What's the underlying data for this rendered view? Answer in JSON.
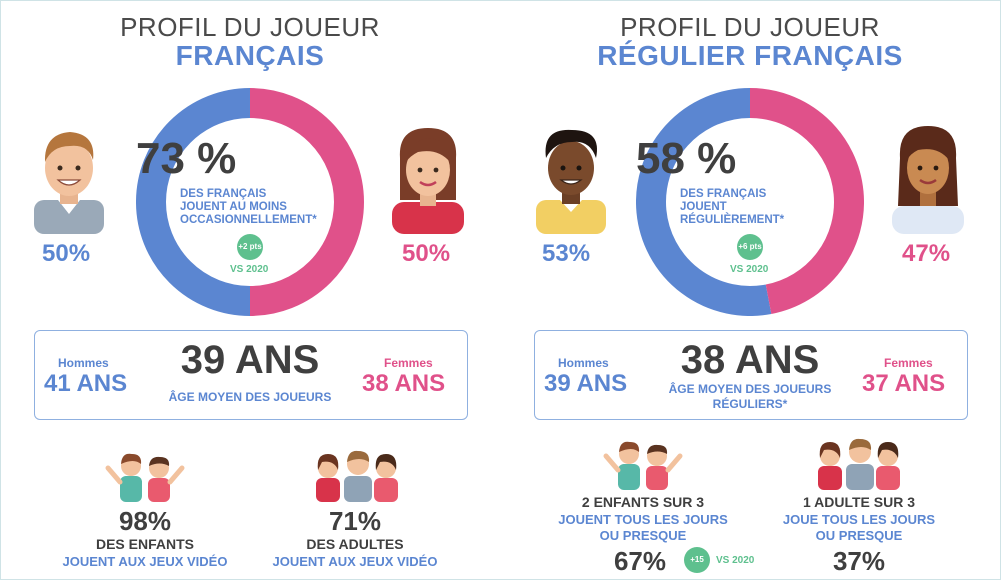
{
  "colors": {
    "blue": "#5b86d1",
    "pink": "#e0518a",
    "green": "#5ec08e",
    "dark": "#3f3f3f"
  },
  "left": {
    "title": "PROFIL DU JOUEUR",
    "subtitle": "FRANÇAIS",
    "ring": {
      "main": "73 %",
      "caption_1": "DES FRANÇAIS",
      "caption_2": "JOUENT AU MOINS",
      "caption_3": "OCCASIONNELLEMENT*",
      "badge": "+2 pts",
      "vs": "VS 2020",
      "men_share": 50,
      "women_share": 50
    },
    "men_pct": "50%",
    "women_pct": "50%",
    "age": {
      "men_label": "Hommes",
      "men_value": "41 ANS",
      "center_value": "39 ANS",
      "center_caption": "ÂGE MOYEN DES JOUEURS",
      "women_label": "Femmes",
      "women_value": "38 ANS"
    },
    "stat1": {
      "value": "98%",
      "line1": "DES ENFANTS",
      "line2": "JOUENT AUX JEUX VIDÉO"
    },
    "stat2": {
      "value": "71%",
      "line1": "DES ADULTES",
      "line2": "JOUENT AUX JEUX VIDÉO"
    }
  },
  "right": {
    "title": "PROFIL DU JOUEUR",
    "subtitle": "RÉGULIER FRANÇAIS",
    "ring": {
      "main": "58 %",
      "caption_1": "DES FRANÇAIS",
      "caption_2": "JOUENT",
      "caption_3": "RÉGULIÈREMENT*",
      "badge": "+6 pts",
      "vs": "VS 2020",
      "men_share": 53,
      "women_share": 47
    },
    "men_pct": "53%",
    "women_pct": "47%",
    "age": {
      "men_label": "Hommes",
      "men_value": "39 ANS",
      "center_value": "38 ANS",
      "center_caption_1": "ÂGE MOYEN DES JOUEURS",
      "center_caption_2": "RÉGULIERS*",
      "women_label": "Femmes",
      "women_value": "37 ANS"
    },
    "stat1": {
      "line1": "2 ENFANTS SUR 3",
      "line2": "JOUENT TOUS LES JOURS",
      "line3": "OU PRESQUE",
      "value": "67%",
      "badge": "+15 pts",
      "vs": "VS 2020"
    },
    "stat2": {
      "line1": "1 ADULTE SUR 3",
      "line2": "JOUE TOUS LES JOURS",
      "line3": "OU PRESQUE",
      "value": "37%"
    }
  }
}
